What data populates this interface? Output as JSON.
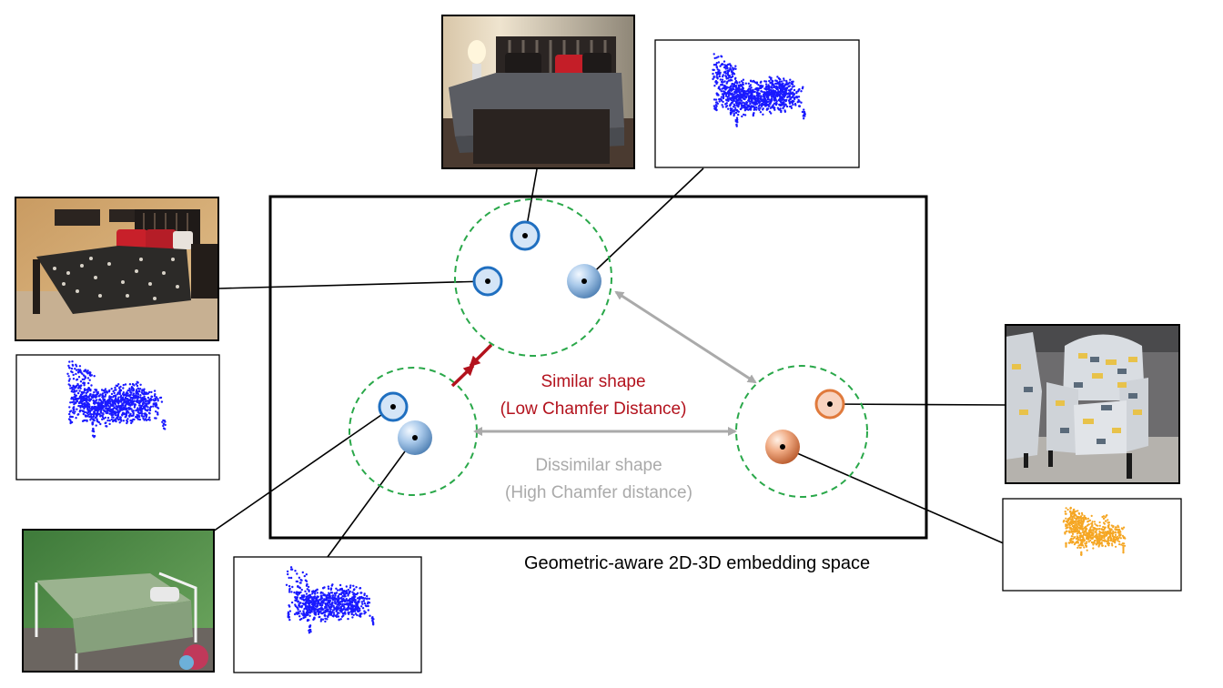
{
  "labels": {
    "similar_line1": "Similar shape",
    "similar_line2": "(Low Chamfer Distance)",
    "dissimilar_line1": "Dissimilar shape",
    "dissimilar_line2": "(High Chamfer distance)",
    "caption": "Geometric-aware 2D-3D embedding space"
  },
  "colors": {
    "similar": "#b3121d",
    "dissimilar": "#aaaaaa",
    "cluster_border": "#2aa84a",
    "image_node_bed": "#1f6fc0",
    "image_node_chair": "#e07a3c",
    "point_cloud_bed": "#1a1aff",
    "point_cloud_chair": "#f5a623"
  },
  "clusters": [
    {
      "name": "bed-cluster-top",
      "members": [
        "image",
        "image",
        "point-cloud"
      ]
    },
    {
      "name": "bed-cluster-left",
      "members": [
        "image",
        "point-cloud"
      ]
    },
    {
      "name": "chair-cluster-right",
      "members": [
        "image",
        "point-cloud"
      ]
    }
  ],
  "thumbnails": [
    {
      "name": "photo-bed-dark-room",
      "kind": "photo"
    },
    {
      "name": "point-cloud-bed-top",
      "kind": "point-cloud"
    },
    {
      "name": "photo-bed-leopard",
      "kind": "photo"
    },
    {
      "name": "point-cloud-bed-left",
      "kind": "point-cloud"
    },
    {
      "name": "photo-bed-green-room",
      "kind": "photo"
    },
    {
      "name": "point-cloud-bed-bottom",
      "kind": "point-cloud"
    },
    {
      "name": "photo-armchair",
      "kind": "photo"
    },
    {
      "name": "point-cloud-armchair",
      "kind": "point-cloud"
    }
  ]
}
